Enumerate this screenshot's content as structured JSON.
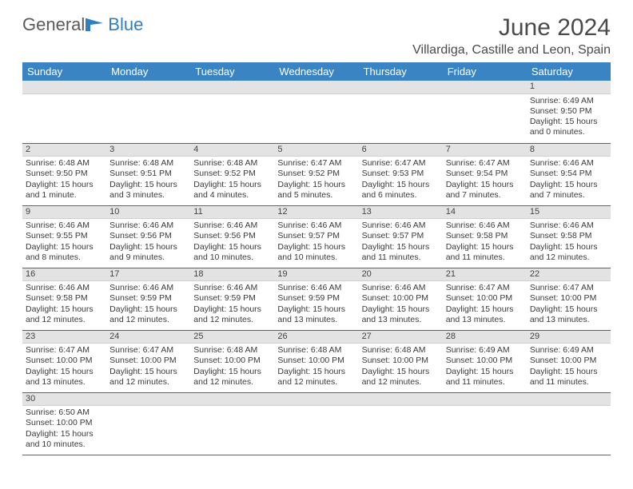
{
  "logo": {
    "text1": "General",
    "text2": "Blue"
  },
  "title": {
    "month": "June 2024",
    "location": "Villardiga, Castille and Leon, Spain"
  },
  "colors": {
    "headerBg": "#3b84c4",
    "headerText": "#ffffff",
    "dayNumBg": "#e3e3e3",
    "rule": "#2f6fa8"
  },
  "weekdays": [
    "Sunday",
    "Monday",
    "Tuesday",
    "Wednesday",
    "Thursday",
    "Friday",
    "Saturday"
  ],
  "weeks": [
    [
      null,
      null,
      null,
      null,
      null,
      null,
      {
        "n": "1",
        "sr": "6:49 AM",
        "ss": "9:50 PM",
        "dl": "15 hours and 0 minutes."
      }
    ],
    [
      {
        "n": "2",
        "sr": "6:48 AM",
        "ss": "9:50 PM",
        "dl": "15 hours and 1 minute."
      },
      {
        "n": "3",
        "sr": "6:48 AM",
        "ss": "9:51 PM",
        "dl": "15 hours and 3 minutes."
      },
      {
        "n": "4",
        "sr": "6:48 AM",
        "ss": "9:52 PM",
        "dl": "15 hours and 4 minutes."
      },
      {
        "n": "5",
        "sr": "6:47 AM",
        "ss": "9:52 PM",
        "dl": "15 hours and 5 minutes."
      },
      {
        "n": "6",
        "sr": "6:47 AM",
        "ss": "9:53 PM",
        "dl": "15 hours and 6 minutes."
      },
      {
        "n": "7",
        "sr": "6:47 AM",
        "ss": "9:54 PM",
        "dl": "15 hours and 7 minutes."
      },
      {
        "n": "8",
        "sr": "6:46 AM",
        "ss": "9:54 PM",
        "dl": "15 hours and 7 minutes."
      }
    ],
    [
      {
        "n": "9",
        "sr": "6:46 AM",
        "ss": "9:55 PM",
        "dl": "15 hours and 8 minutes."
      },
      {
        "n": "10",
        "sr": "6:46 AM",
        "ss": "9:56 PM",
        "dl": "15 hours and 9 minutes."
      },
      {
        "n": "11",
        "sr": "6:46 AM",
        "ss": "9:56 PM",
        "dl": "15 hours and 10 minutes."
      },
      {
        "n": "12",
        "sr": "6:46 AM",
        "ss": "9:57 PM",
        "dl": "15 hours and 10 minutes."
      },
      {
        "n": "13",
        "sr": "6:46 AM",
        "ss": "9:57 PM",
        "dl": "15 hours and 11 minutes."
      },
      {
        "n": "14",
        "sr": "6:46 AM",
        "ss": "9:58 PM",
        "dl": "15 hours and 11 minutes."
      },
      {
        "n": "15",
        "sr": "6:46 AM",
        "ss": "9:58 PM",
        "dl": "15 hours and 12 minutes."
      }
    ],
    [
      {
        "n": "16",
        "sr": "6:46 AM",
        "ss": "9:58 PM",
        "dl": "15 hours and 12 minutes."
      },
      {
        "n": "17",
        "sr": "6:46 AM",
        "ss": "9:59 PM",
        "dl": "15 hours and 12 minutes."
      },
      {
        "n": "18",
        "sr": "6:46 AM",
        "ss": "9:59 PM",
        "dl": "15 hours and 12 minutes."
      },
      {
        "n": "19",
        "sr": "6:46 AM",
        "ss": "9:59 PM",
        "dl": "15 hours and 13 minutes."
      },
      {
        "n": "20",
        "sr": "6:46 AM",
        "ss": "10:00 PM",
        "dl": "15 hours and 13 minutes."
      },
      {
        "n": "21",
        "sr": "6:47 AM",
        "ss": "10:00 PM",
        "dl": "15 hours and 13 minutes."
      },
      {
        "n": "22",
        "sr": "6:47 AM",
        "ss": "10:00 PM",
        "dl": "15 hours and 13 minutes."
      }
    ],
    [
      {
        "n": "23",
        "sr": "6:47 AM",
        "ss": "10:00 PM",
        "dl": "15 hours and 13 minutes."
      },
      {
        "n": "24",
        "sr": "6:47 AM",
        "ss": "10:00 PM",
        "dl": "15 hours and 12 minutes."
      },
      {
        "n": "25",
        "sr": "6:48 AM",
        "ss": "10:00 PM",
        "dl": "15 hours and 12 minutes."
      },
      {
        "n": "26",
        "sr": "6:48 AM",
        "ss": "10:00 PM",
        "dl": "15 hours and 12 minutes."
      },
      {
        "n": "27",
        "sr": "6:48 AM",
        "ss": "10:00 PM",
        "dl": "15 hours and 12 minutes."
      },
      {
        "n": "28",
        "sr": "6:49 AM",
        "ss": "10:00 PM",
        "dl": "15 hours and 11 minutes."
      },
      {
        "n": "29",
        "sr": "6:49 AM",
        "ss": "10:00 PM",
        "dl": "15 hours and 11 minutes."
      }
    ],
    [
      {
        "n": "30",
        "sr": "6:50 AM",
        "ss": "10:00 PM",
        "dl": "15 hours and 10 minutes."
      },
      null,
      null,
      null,
      null,
      null,
      null
    ]
  ],
  "labels": {
    "sunrise": "Sunrise: ",
    "sunset": "Sunset: ",
    "daylight": "Daylight: "
  }
}
